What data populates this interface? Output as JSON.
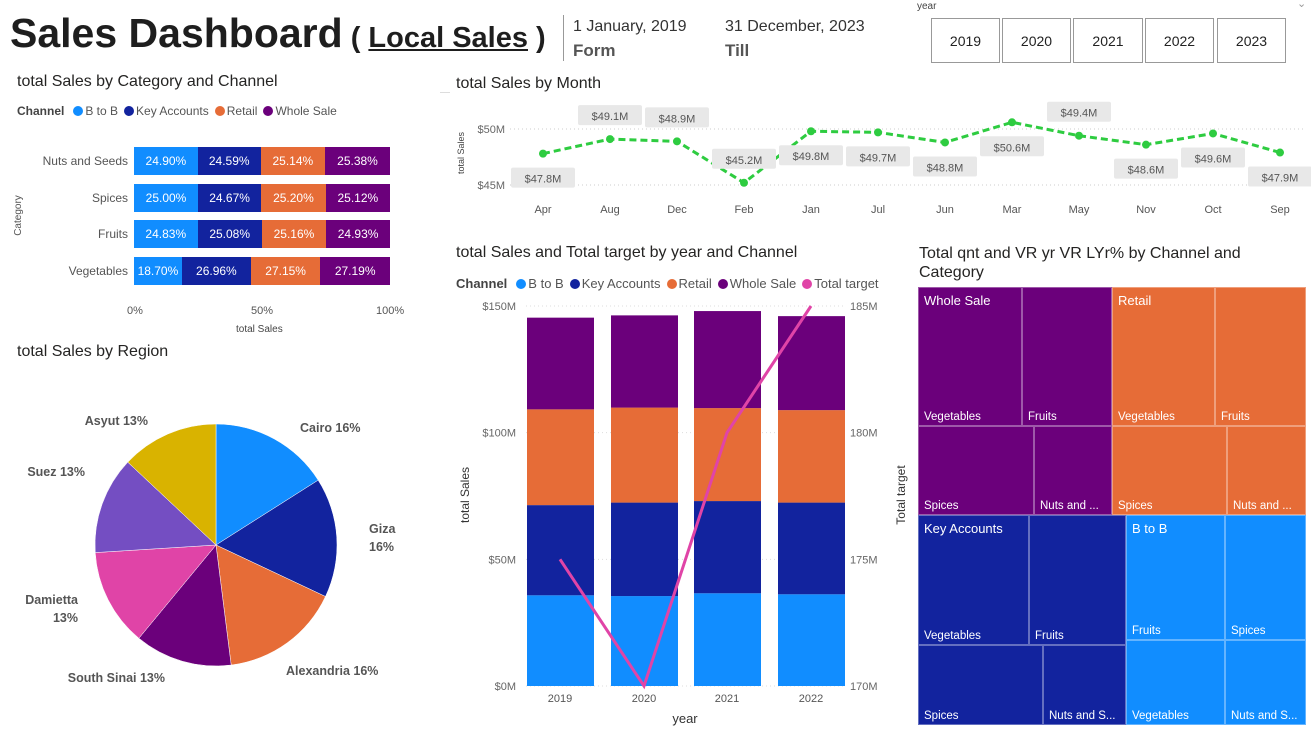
{
  "header": {
    "title": "Sales Dashboard",
    "subtitle_open": "( ",
    "subtitle": "Local Sales",
    "subtitle_close": " )",
    "from_date": "1 January, 2019",
    "from_label": "Form",
    "till_date": "31 December, 2023",
    "till_label": "Till"
  },
  "year_slicer": {
    "label": "year",
    "options": [
      "2019",
      "2020",
      "2021",
      "2022",
      "2023"
    ],
    "chevron": "chevron-down-icon"
  },
  "colors": {
    "b_to_b": "#118DFF",
    "key_accounts": "#12239E",
    "retail": "#E66C37",
    "whole_sale": "#6B007B",
    "total_target": "#E044A7",
    "line": "#2ECC40"
  },
  "category_chart": {
    "title": "total Sales by Category and Channel",
    "legend_title": "Channel",
    "legend": [
      "B to B",
      "Key Accounts",
      "Retail",
      "Whole Sale"
    ],
    "ylabel": "Category",
    "xlabel": "total Sales",
    "xticks": [
      "0%",
      "50%",
      "100%"
    ],
    "rows": [
      {
        "category": "Nuts and Seeds",
        "values": [
          24.9,
          24.59,
          25.14,
          25.38
        ],
        "labels": [
          "24.90%",
          "24.59%",
          "25.14%",
          "25.38%"
        ]
      },
      {
        "category": "Spices",
        "values": [
          25.0,
          24.67,
          25.2,
          25.12
        ],
        "labels": [
          "25.00%",
          "24.67%",
          "25.20%",
          "25.12%"
        ]
      },
      {
        "category": "Fruits",
        "values": [
          24.83,
          25.08,
          25.16,
          24.93
        ],
        "labels": [
          "24.83%",
          "25.08%",
          "25.16%",
          "24.93%"
        ]
      },
      {
        "category": "Vegetables",
        "values": [
          18.7,
          26.96,
          27.15,
          27.19
        ],
        "labels": [
          "18.70%",
          "26.96%",
          "27.15%",
          "27.19%"
        ]
      }
    ]
  },
  "month_chart": {
    "title": "total Sales by Month",
    "ylabel": "total Sales",
    "yticks": [
      "$50M",
      "$45M"
    ],
    "months": [
      "Apr",
      "Aug",
      "Dec",
      "Feb",
      "Jan",
      "Jul",
      "Jun",
      "Mar",
      "May",
      "Nov",
      "Oct",
      "Sep"
    ],
    "values": [
      47.8,
      49.1,
      48.9,
      45.2,
      49.8,
      49.7,
      48.8,
      50.6,
      49.4,
      48.6,
      49.6,
      47.9
    ],
    "labels": [
      "$47.8M",
      "$49.1M",
      "$48.9M",
      "$45.2M",
      "$49.8M",
      "$49.7M",
      "$48.8M",
      "$50.6M",
      "$49.4M",
      "$48.6M",
      "$49.6M",
      "$47.9M"
    ]
  },
  "chart_data": {
    "type": "bar",
    "title": "total Sales and Total target by year and Channel",
    "xlabel": "year",
    "ylabel": "total Sales",
    "y2label": "Total target",
    "legend_title": "Channel",
    "categories": [
      "2019",
      "2020",
      "2021",
      "2022"
    ],
    "yticks": [
      "$150M",
      "$100M",
      "$50M",
      "$0M"
    ],
    "y2ticks": [
      "185M",
      "180M",
      "175M",
      "170M"
    ],
    "ylim": [
      0,
      150
    ],
    "y2lim": [
      170,
      185
    ],
    "series": [
      {
        "name": "B to B",
        "values": [
          35.8,
          35.5,
          36.6,
          36.2
        ]
      },
      {
        "name": "Key Accounts",
        "values": [
          35.6,
          36.9,
          36.4,
          36.2
        ]
      },
      {
        "name": "Retail",
        "values": [
          37.8,
          37.5,
          36.7,
          36.5
        ]
      },
      {
        "name": "Whole Sale",
        "values": [
          36.2,
          36.4,
          38.3,
          37.1
        ]
      },
      {
        "name": "Total target",
        "type": "line",
        "values": [
          175,
          170,
          180,
          185
        ]
      }
    ]
  },
  "region_chart": {
    "title": "total Sales by Region",
    "slices": [
      {
        "name": "Cairo",
        "pct": 16,
        "label": "Cairo 16%",
        "color": "#118DFF"
      },
      {
        "name": "Giza",
        "pct": 16,
        "label": "Giza",
        "label2": "16%",
        "color": "#12239E"
      },
      {
        "name": "Alexandria",
        "pct": 16,
        "label": "Alexandria 16%",
        "color": "#E66C37"
      },
      {
        "name": "South Sinai",
        "pct": 13,
        "label": "South Sinai 13%",
        "color": "#6B007B"
      },
      {
        "name": "Damietta",
        "pct": 13,
        "label": "Damietta",
        "label2": "13%",
        "color": "#E044A7"
      },
      {
        "name": "Suez",
        "pct": 13,
        "label": "Suez 13%",
        "color": "#744EC2"
      },
      {
        "name": "Asyut",
        "pct": 13,
        "label": "Asyut 13%",
        "color": "#D9B300"
      }
    ]
  },
  "treemap": {
    "title": "Total qnt and VR yr VR LYr% by Channel and Category",
    "channels": [
      {
        "name": "Whole Sale",
        "cells": [
          "Vegetables",
          "Fruits",
          "Spices",
          "Nuts and ..."
        ]
      },
      {
        "name": "Retail",
        "cells": [
          "Vegetables",
          "Fruits",
          "Spices",
          "Nuts and ..."
        ]
      },
      {
        "name": "Key Accounts",
        "cells": [
          "Vegetables",
          "Fruits",
          "Spices",
          "Nuts and S..."
        ]
      },
      {
        "name": "B to B",
        "cells": [
          "Fruits",
          "Spices",
          "Vegetables",
          "Nuts and S..."
        ]
      }
    ]
  }
}
